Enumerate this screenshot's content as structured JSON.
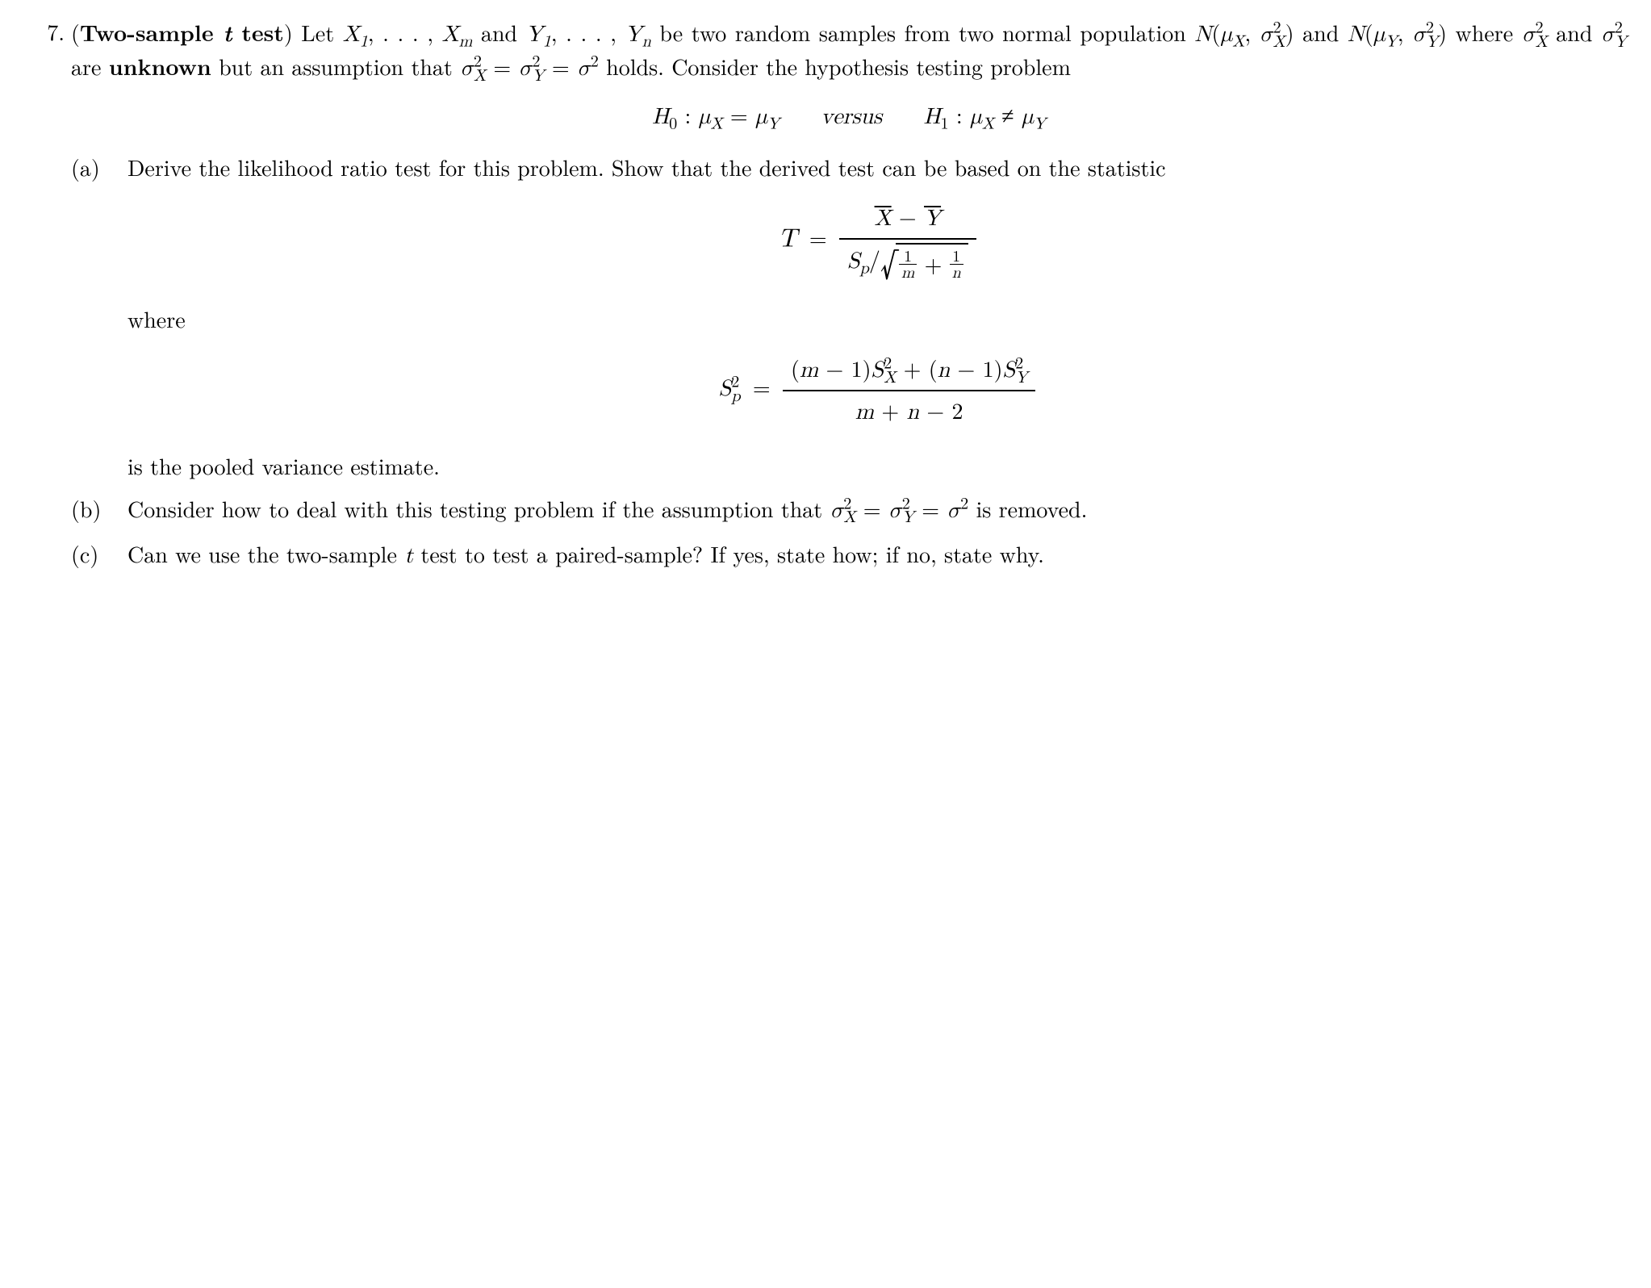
{
  "problem_number": "7.",
  "title_prefix": "(",
  "title_bold1": "Two-sample ",
  "title_ital": "t",
  "title_bold2": " test",
  "title_suffix": ") ",
  "intro_1": "Let ",
  "intro_X1": "X",
  "intro_X1sub": "1",
  "intro_dots1": ", . . . , ",
  "intro_Xm": "X",
  "intro_Xmsub": "m",
  "intro_and1": " and ",
  "intro_Y1": "Y",
  "intro_Y1sub": "1",
  "intro_dots2": ", . . . , ",
  "intro_Yn": "Y",
  "intro_Ynsub": "n",
  "intro_2": " be two random samples from two normal population ",
  "intro_N1": "N",
  "intro_lp1": "(",
  "intro_muX": "μ",
  "intro_muXsub": "X",
  "intro_comma1": ", ",
  "intro_sigX": "σ",
  "intro_sigXsup": "2",
  "intro_sigXsub": "X",
  "intro_rp1": ")",
  "intro_and2": " and ",
  "intro_N2": "N",
  "intro_lp2": "(",
  "intro_muY": "μ",
  "intro_muYsub": "Y",
  "intro_comma2": ", ",
  "intro_sigY": "σ",
  "intro_sigYsup": "2",
  "intro_sigYsub": "Y",
  "intro_rp2": ")",
  "intro_3": " where ",
  "intro_sigX2": "σ",
  "intro_sigX2sup": "2",
  "intro_sigX2sub": "X",
  "intro_and3": " and ",
  "intro_sigY2": "σ",
  "intro_sigY2sup": "2",
  "intro_sigY2sub": "Y",
  "intro_are": " are ",
  "intro_unknown": "unknown",
  "intro_but": " but an assumption that ",
  "intro_sigX3": "σ",
  "intro_sigX3sup": "2",
  "intro_sigX3sub": "X",
  "intro_eq1": " = ",
  "intro_sigY3": "σ",
  "intro_sigY3sup": "2",
  "intro_sigY3sub": "Y",
  "intro_eq2": " = ",
  "intro_sig": "σ",
  "intro_sigsup": "2",
  "intro_holds": " holds. Consider the hypothesis testing problem",
  "hyp_H0": "H",
  "hyp_H0sub": "0",
  "hyp_colon1": " : ",
  "hyp_muX1": "μ",
  "hyp_muXsub1": "X",
  "hyp_eq": " = ",
  "hyp_muY1": "μ",
  "hyp_muYsub1": "Y",
  "hyp_versus": "versus",
  "hyp_H1": "H",
  "hyp_H1sub": "1",
  "hyp_colon2": " : ",
  "hyp_muX2": "μ",
  "hyp_muXsub2": "X",
  "hyp_neq": " ≠ ",
  "hyp_muY2": "μ",
  "hyp_muYsub2": "Y",
  "a_label": "(a)",
  "a_text1": "Derive the likelihood ratio test for this problem.  Show that the derived test can be based on the statistic",
  "T_label": "T",
  "T_eq": " = ",
  "T_num_Xbar": "X",
  "T_num_minus": " − ",
  "T_num_Ybar": "Y",
  "T_den_Sp": "S",
  "T_den_Spsub": "p",
  "T_den_slash": "/",
  "T_den_frac1n": "1",
  "T_den_frac1d": "m",
  "T_den_plus": " + ",
  "T_den_frac2n": "1",
  "T_den_frac2d": "n",
  "a_where": "where",
  "Sp_label": "S",
  "Sp_sup": "2",
  "Sp_sub": "p",
  "Sp_eq": " = ",
  "Sp_num_lp1": "(",
  "Sp_num_m": "m",
  "Sp_num_minus1": " − 1)",
  "Sp_num_SX": "S",
  "Sp_num_SXsup": "2",
  "Sp_num_SXsub": "X",
  "Sp_num_plus": " + (",
  "Sp_num_n": "n",
  "Sp_num_minus2": " − 1)",
  "Sp_num_SY": "S",
  "Sp_num_SYsup": "2",
  "Sp_num_SYsub": "Y",
  "Sp_den_m": "m",
  "Sp_den_plus": " + ",
  "Sp_den_n": "n",
  "Sp_den_minus": " − 2",
  "a_text2": "is the pooled variance estimate.",
  "b_label": "(b)",
  "b_text1": "Consider how to deal with this testing problem if the assumption that ",
  "b_sigX": "σ",
  "b_sigXsup": "2",
  "b_sigXsub": "X",
  "b_eq1": " = ",
  "b_sigY": "σ",
  "b_sigYsup": "2",
  "b_sigYsub": "Y",
  "b_eq2": " = ",
  "b_sig": "σ",
  "b_sigsup": "2",
  "b_text2": " is removed.",
  "c_label": "(c)",
  "c_text1": "Can we use the two-sample ",
  "c_t": "t",
  "c_text2": " test to test a paired-sample? If yes, state how; if no, state why."
}
